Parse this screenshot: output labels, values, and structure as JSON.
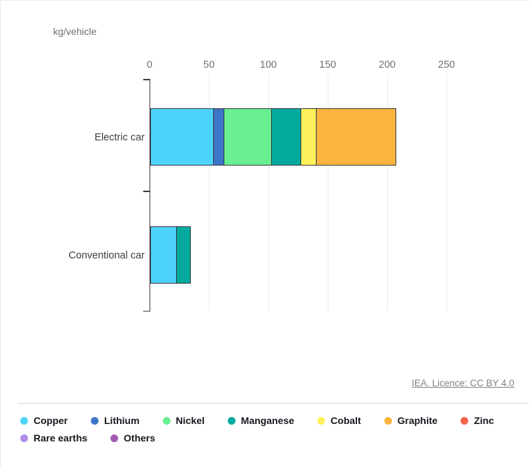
{
  "axis": {
    "unit_label": "kg/vehicle"
  },
  "attribution": {
    "text": "IEA. Licence: CC BY 4.0"
  },
  "colors": {
    "bar_border": "#35353d",
    "grid": "#ebebef",
    "axis_line": "#3a3a42",
    "tick_text": "#6f6f78",
    "category_text": "#3d3d45",
    "legend_text": "#17171f",
    "attribution_text": "#7f7f88",
    "divider": "#d7d7db"
  },
  "chart_data": {
    "type": "bar",
    "orientation": "horizontal",
    "stacked": true,
    "title": "",
    "xlabel": "kg/vehicle",
    "ylabel": "",
    "categories": [
      "Electric car",
      "Conventional car"
    ],
    "xlim": [
      0,
      250
    ],
    "x_ticks": [
      0,
      50,
      100,
      150,
      200,
      250
    ],
    "grid": true,
    "legend_position": "bottom",
    "series": [
      {
        "name": "Copper",
        "color": "#4DD2FA",
        "values": [
          53.2,
          22.3
        ]
      },
      {
        "name": "Lithium",
        "color": "#3C77C9",
        "values": [
          8.9,
          0
        ]
      },
      {
        "name": "Nickel",
        "color": "#68EF92",
        "values": [
          39.9,
          0
        ]
      },
      {
        "name": "Manganese",
        "color": "#00AB9D",
        "values": [
          24.5,
          11.2
        ]
      },
      {
        "name": "Cobalt",
        "color": "#FCF15A",
        "values": [
          13.3,
          0
        ]
      },
      {
        "name": "Graphite",
        "color": "#FCB53F",
        "values": [
          66.3,
          0
        ]
      },
      {
        "name": "Zinc",
        "color": "#F9624A",
        "values": [
          0.1,
          0.1
        ]
      },
      {
        "name": "Rare earths",
        "color": "#B28CE8",
        "values": [
          0.5,
          0
        ]
      },
      {
        "name": "Others",
        "color": "#A259B3",
        "values": [
          0.3,
          0.3
        ]
      }
    ],
    "totals": [
      207.0,
      33.9
    ]
  }
}
